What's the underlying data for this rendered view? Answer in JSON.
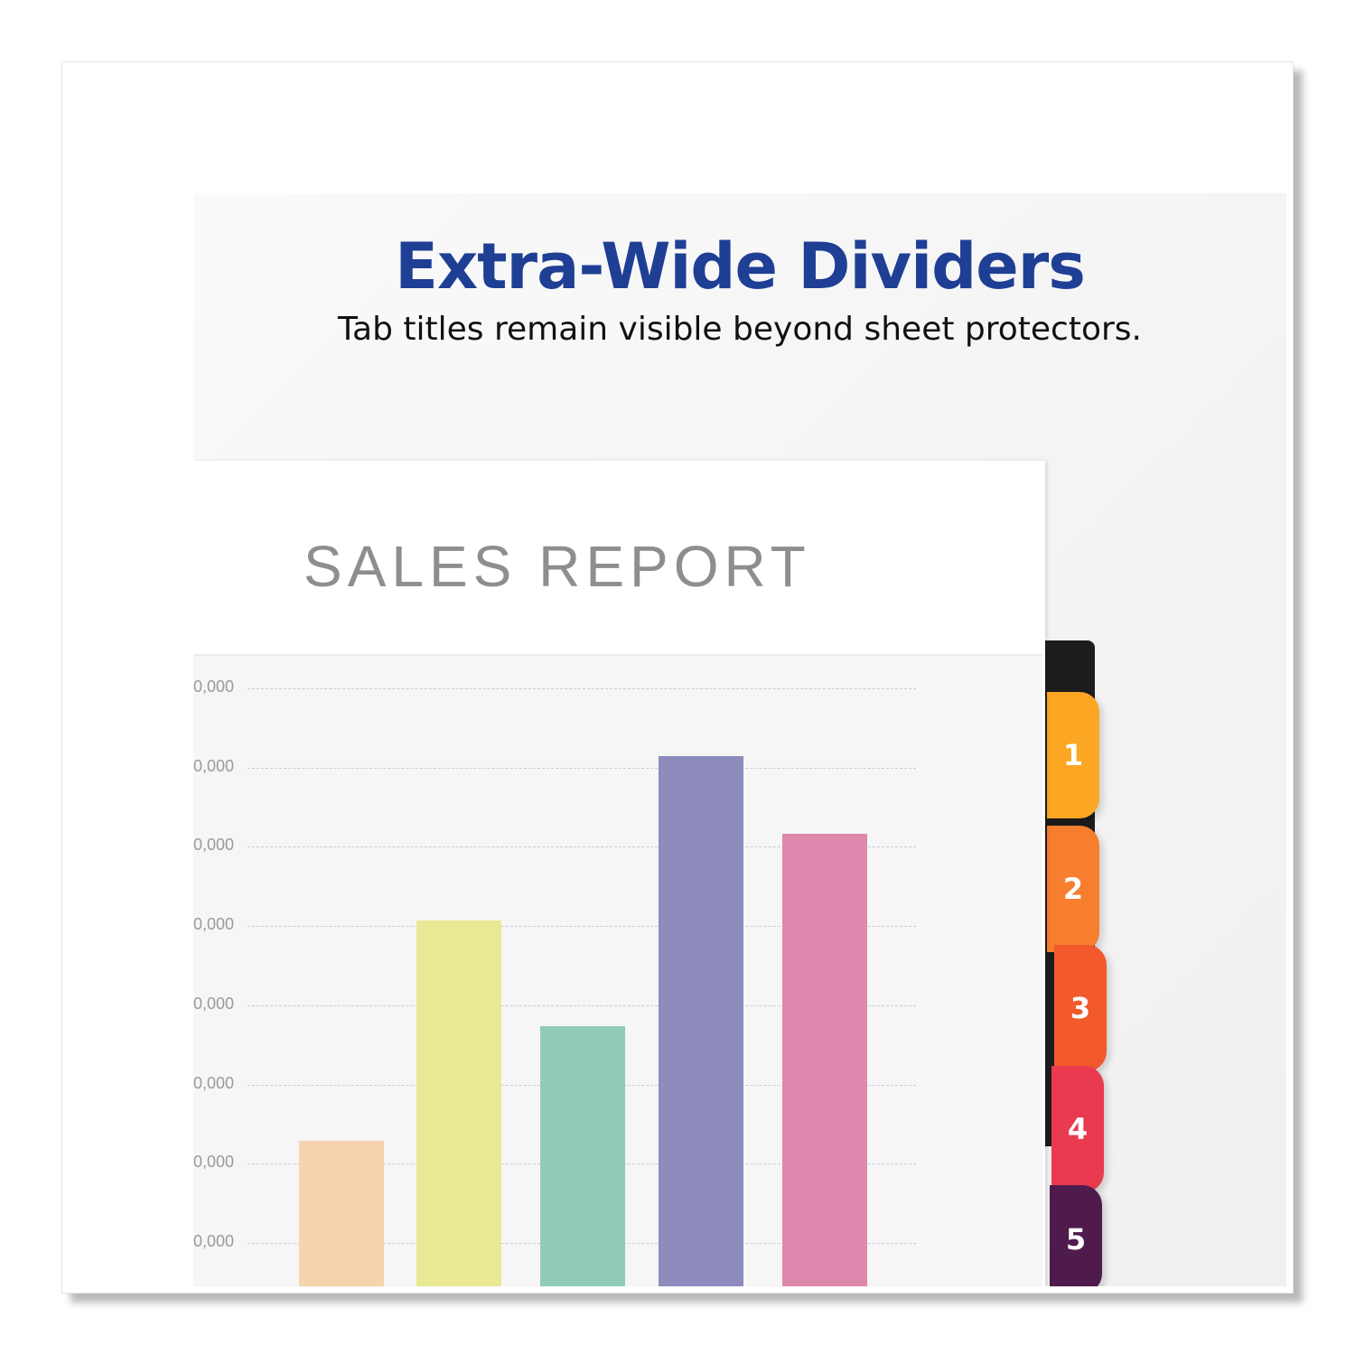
{
  "header": {
    "title": "Extra-Wide Dividers",
    "subtitle": "Tab titles remain visible beyond sheet protectors."
  },
  "report": {
    "title": "SALES REPORT",
    "axis_labels": [
      "0,000",
      "0,000",
      "0,000",
      "0,000",
      "0,000",
      "0,000",
      "0,000",
      "0,000"
    ],
    "bars": [
      {
        "color": "#f5d3ae",
        "level_gridsteps": 1.29
      },
      {
        "color": "#e9e895",
        "level_gridsteps": 4.07
      },
      {
        "color": "#93cbbb",
        "level_gridsteps": 2.73
      },
      {
        "color": "#8e8bbd",
        "level_gridsteps": 6.15
      },
      {
        "color": "#de88ae",
        "level_gridsteps": 5.17
      }
    ]
  },
  "tabs": [
    {
      "label": "1",
      "color": "#fba724"
    },
    {
      "label": "2",
      "color": "#f77e2e"
    },
    {
      "label": "3",
      "color": "#f2592b"
    },
    {
      "label": "4",
      "color": "#ea3a4f"
    },
    {
      "label": "5",
      "color": "#4f1b4d"
    }
  ],
  "colors": {
    "title": "#1f3f95"
  }
}
